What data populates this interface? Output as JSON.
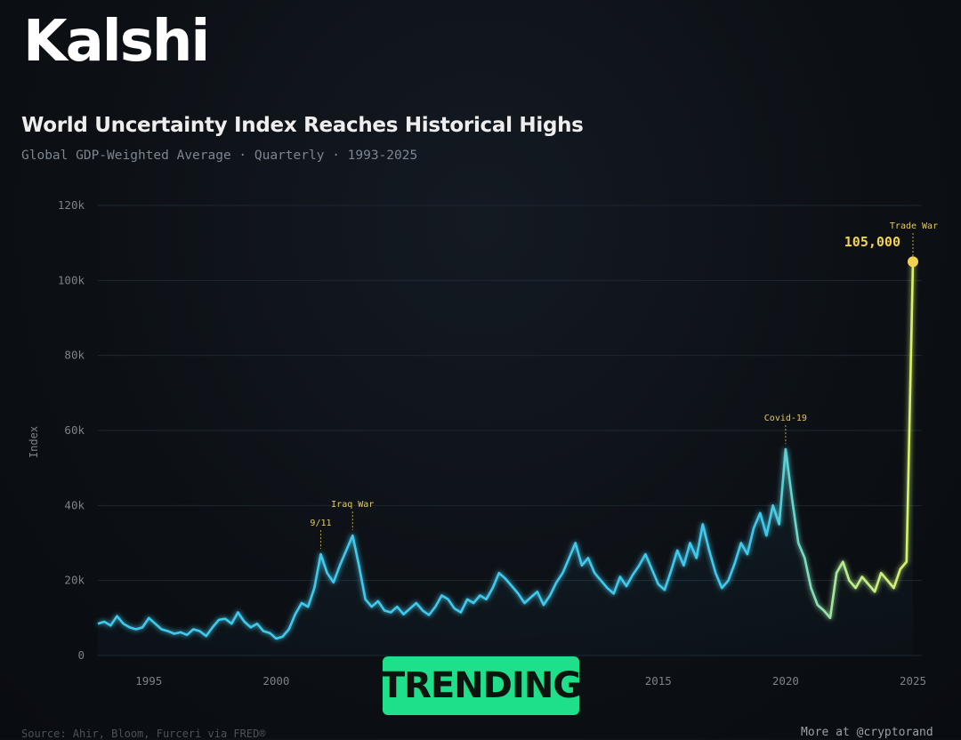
{
  "brand": "Kalshi",
  "title": "World Uncertainty Index Reaches Historical Highs",
  "subtitle": "Global GDP-Weighted Average · Quarterly · 1993-2025",
  "badge": "TRENDING",
  "footer": {
    "source": "Source: Ahir, Bloom, Furceri via FRED®",
    "more": "More at @cryptorand"
  },
  "colors": {
    "line_start": "#3fc9ec",
    "line_end": "#d9f26a",
    "annotation": "#e5c85a",
    "highlight": "#f2d34f",
    "badge": "#1fe08a"
  },
  "chart_data": {
    "type": "line",
    "ylabel": "Index",
    "ylim": [
      0,
      120000
    ],
    "xlim": [
      1993,
      2025
    ],
    "grid": true,
    "y_ticks": [
      0,
      20000,
      40000,
      60000,
      80000,
      100000,
      120000
    ],
    "y_tick_labels": [
      "0",
      "20k",
      "40k",
      "60k",
      "80k",
      "100k",
      "120k"
    ],
    "x_ticks": [
      1995,
      2000,
      2015,
      2020,
      2025
    ],
    "x_tick_labels": [
      "1995",
      "2000",
      "2015",
      "2020",
      "2025"
    ],
    "series": [
      {
        "x": [
          1993.0,
          1993.25,
          1993.5,
          1993.75,
          1994.0,
          1994.25,
          1994.5,
          1994.75,
          1995.0,
          1995.25,
          1995.5,
          1995.75,
          1996.0,
          1996.25,
          1996.5,
          1996.75,
          1997.0,
          1997.25,
          1997.5,
          1997.75,
          1998.0,
          1998.25,
          1998.5,
          1998.75,
          1999.0,
          1999.25,
          1999.5,
          1999.75,
          2000.0,
          2000.25,
          2000.5,
          2000.75,
          2001.0,
          2001.25,
          2001.5,
          2001.75,
          2002.0,
          2002.25,
          2002.5,
          2002.75,
          2003.0,
          2003.25,
          2003.5,
          2003.75,
          2004.0,
          2004.25,
          2004.5,
          2004.75,
          2005.0,
          2005.25,
          2005.5,
          2005.75,
          2006.0,
          2006.25,
          2006.5,
          2006.75,
          2007.0,
          2007.25,
          2007.5,
          2007.75,
          2008.0,
          2008.25,
          2008.5,
          2008.75,
          2009.0,
          2009.25,
          2009.5,
          2009.75,
          2010.0,
          2010.25,
          2010.5,
          2010.75,
          2011.0,
          2011.25,
          2011.5,
          2011.75,
          2012.0,
          2012.25,
          2012.5,
          2012.75,
          2013.0,
          2013.25,
          2013.5,
          2013.75,
          2014.0,
          2014.25,
          2014.5,
          2014.75,
          2015.0,
          2015.25,
          2015.5,
          2015.75,
          2016.0,
          2016.25,
          2016.5,
          2016.75,
          2017.0,
          2017.25,
          2017.5,
          2017.75,
          2018.0,
          2018.25,
          2018.5,
          2018.75,
          2019.0,
          2019.25,
          2019.5,
          2019.75,
          2020.0,
          2020.25,
          2020.5,
          2020.75,
          2021.0,
          2021.25,
          2021.5,
          2021.75,
          2022.0,
          2022.25,
          2022.5,
          2022.75,
          2023.0,
          2023.25,
          2023.5,
          2023.75,
          2024.0,
          2024.25,
          2024.5,
          2024.75,
          2025.0
        ],
        "values": [
          8500,
          9000,
          8000,
          10500,
          8500,
          7500,
          7000,
          7500,
          10000,
          8500,
          7000,
          6500,
          5800,
          6200,
          5500,
          7000,
          6500,
          5200,
          7500,
          9500,
          9800,
          8500,
          11500,
          9000,
          7500,
          8500,
          6500,
          6000,
          4500,
          5000,
          7000,
          11000,
          14000,
          13000,
          18000,
          27000,
          22000,
          19500,
          24000,
          28000,
          32000,
          24000,
          15000,
          13000,
          14500,
          12000,
          11500,
          13000,
          11000,
          12500,
          14000,
          12000,
          10800,
          13000,
          16000,
          15000,
          12500,
          11500,
          15000,
          14000,
          16000,
          15000,
          18000,
          22000,
          20500,
          18500,
          16500,
          14000,
          15500,
          17000,
          13500,
          16000,
          19500,
          22000,
          26000,
          30000,
          24000,
          26000,
          22000,
          20000,
          18000,
          16500,
          21000,
          18500,
          21500,
          24000,
          27000,
          23000,
          19000,
          17500,
          22500,
          28000,
          24000,
          30000,
          26000,
          35000,
          28000,
          22000,
          18000,
          20000,
          24500,
          30000,
          27000,
          34000,
          38000,
          32000,
          40000,
          35000,
          55000,
          42000,
          30000,
          26000,
          18000,
          13500,
          12000,
          10000,
          22000,
          25000,
          20000,
          18000,
          21000,
          19000,
          17000,
          22000,
          20000,
          18000,
          23000,
          25000,
          105000
        ]
      }
    ],
    "annotations": [
      {
        "x": 2001.75,
        "y": 27000,
        "label": "9/11"
      },
      {
        "x": 2003.0,
        "y": 32000,
        "label": "Iraq War"
      },
      {
        "x": 2020.0,
        "y": 55000,
        "label": "Covid-19"
      },
      {
        "x": 2025.0,
        "y": 105000,
        "label": "Trade War",
        "value_label": "105,000"
      }
    ]
  }
}
